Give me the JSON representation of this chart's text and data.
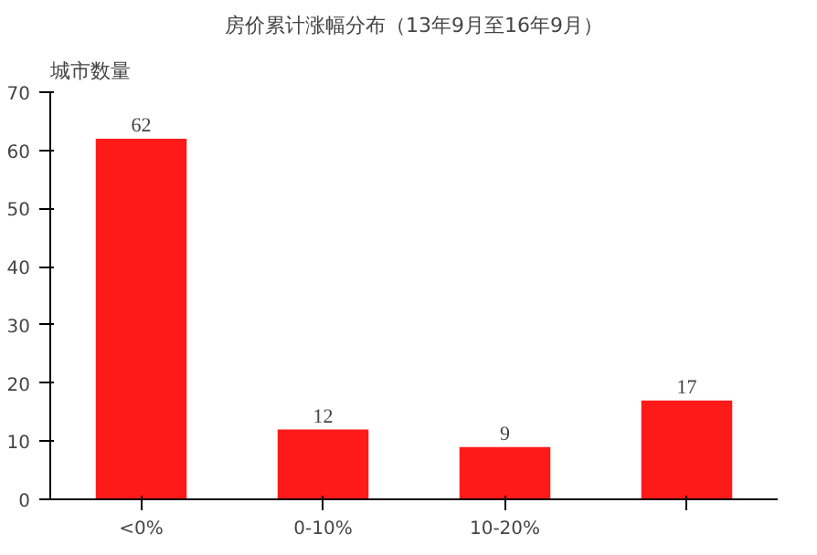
{
  "chart_data": {
    "type": "bar",
    "title": "房价累计涨幅分布（13年9月至16年9月）",
    "ylabel": "城市数量",
    "categories": [
      "<0%",
      "0-10%",
      "10-20%",
      null
    ],
    "values": [
      62,
      12,
      9,
      17
    ],
    "color": "#ff1a1a",
    "ylim": [
      0,
      70
    ],
    "yticks": [
      0,
      10,
      20,
      30,
      40,
      50,
      60,
      70
    ],
    "grid": false,
    "data_labels": true
  }
}
